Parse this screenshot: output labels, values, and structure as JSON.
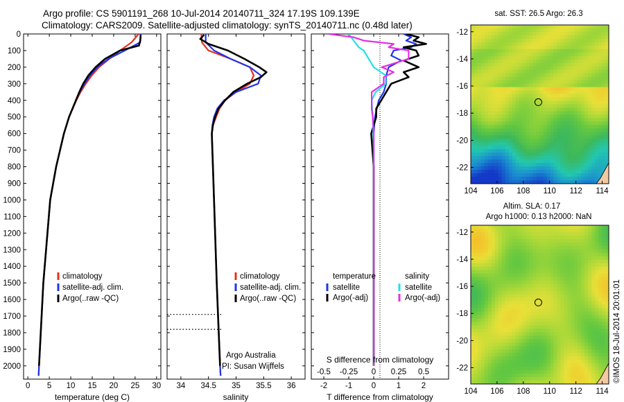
{
  "header": {
    "line1": "Argo profile: CS 5901191_268 10-Jul-2014 20140711_324 17.19S 109.139E",
    "line2": "Climatology: CARS2009. Satellite-adjusted climatology: synTS_20140711.nc (0.48d later)"
  },
  "credits": {
    "org": "Argo Australia",
    "pi": "PI: Susan Wijffels",
    "stamp": "©IMOS 18-Jul-2014 20:01:01"
  },
  "colors": {
    "climatology": "#e8301e",
    "satellite": "#1f35e6",
    "argo": "#000000",
    "cyan": "#22e0e8",
    "magenta": "#e62ee6"
  },
  "chart_data": [
    {
      "type": "line",
      "panel": "temperature",
      "xlabel": "temperature (deg C)",
      "ylabel": "",
      "xlim": [
        -1,
        31
      ],
      "ylim": [
        2080,
        0
      ],
      "xticks": [
        0,
        5,
        10,
        15,
        20,
        25,
        30
      ],
      "yticks": [
        0,
        100,
        200,
        300,
        400,
        500,
        600,
        700,
        800,
        900,
        1000,
        1100,
        1200,
        1300,
        1400,
        1500,
        1600,
        1700,
        1800,
        1900,
        2000
      ],
      "legend": [
        "climatology",
        "satellite-adj. clim.",
        "Argo(..raw -QC)"
      ],
      "legend_position": "lower-center",
      "series": [
        {
          "name": "climatology",
          "color": "#e8301e",
          "depth": [
            0,
            50,
            100,
            150,
            200,
            250,
            300,
            350,
            400,
            500,
            600,
            800,
            1000,
            1500,
            2000,
            2060
          ],
          "values": [
            25.8,
            24.2,
            21.5,
            19.0,
            16.6,
            14.9,
            13.5,
            12.3,
            11.3,
            9.6,
            8.4,
            6.6,
            5.2,
            3.6,
            2.6,
            2.5
          ]
        },
        {
          "name": "satellite-adj. clim.",
          "color": "#1f35e6",
          "depth": [
            0,
            50,
            100,
            150,
            200,
            250,
            300,
            350,
            400,
            500,
            600,
            800,
            1000,
            1500,
            2000,
            2060
          ],
          "values": [
            26.3,
            26.2,
            22.6,
            18.8,
            16.2,
            14.5,
            13.2,
            12.1,
            11.2,
            9.6,
            8.4,
            6.6,
            5.2,
            3.6,
            2.6,
            2.5
          ]
        },
        {
          "name": "Argo(..raw -QC)",
          "color": "#000000",
          "depth": [
            5,
            40,
            70,
            100,
            150,
            200,
            250,
            300,
            350,
            400,
            500,
            600,
            800,
            1000,
            1500,
            2000
          ],
          "values": [
            26.3,
            26.2,
            25.9,
            21.5,
            18.0,
            15.8,
            14.1,
            12.9,
            12.0,
            11.2,
            9.6,
            8.4,
            6.6,
            5.2,
            3.6,
            2.6
          ]
        }
      ]
    },
    {
      "type": "line",
      "panel": "salinity",
      "xlabel": "salinity",
      "xlim": [
        33.75,
        36.25
      ],
      "ylim": [
        2080,
        0
      ],
      "xticks": [
        34,
        34.5,
        35,
        35.5,
        36
      ],
      "legend": [
        "climatology",
        "satellite-adj. clim.",
        "Argo(..raw -QC)"
      ],
      "legend_position": "lower-center",
      "series": [
        {
          "name": "climatology",
          "color": "#e8301e",
          "depth": [
            0,
            50,
            100,
            150,
            200,
            250,
            300,
            350,
            400,
            450,
            500,
            550,
            600,
            800,
            1000,
            1500,
            2000,
            2060
          ],
          "values": [
            34.37,
            34.38,
            34.5,
            34.9,
            35.25,
            35.32,
            35.25,
            35.0,
            34.8,
            34.7,
            34.64,
            34.58,
            34.56,
            34.58,
            34.6,
            34.65,
            34.71,
            34.72
          ]
        },
        {
          "name": "satellite-adj. clim.",
          "color": "#1f35e6",
          "depth": [
            0,
            50,
            100,
            150,
            200,
            250,
            300,
            350,
            400,
            450,
            500,
            550,
            600,
            800,
            1000,
            1500,
            2000,
            2060
          ],
          "values": [
            34.45,
            34.45,
            34.6,
            34.9,
            35.25,
            35.45,
            35.4,
            35.0,
            34.78,
            34.66,
            34.6,
            34.57,
            34.56,
            34.58,
            34.6,
            34.65,
            34.71,
            34.72
          ]
        },
        {
          "name": "Argo(..raw -QC)",
          "color": "#000000",
          "depth": [
            5,
            30,
            60,
            100,
            150,
            200,
            230,
            260,
            300,
            350,
            400,
            450,
            500,
            550,
            600,
            800,
            1000,
            1500,
            2000
          ],
          "values": [
            34.42,
            34.35,
            34.5,
            34.85,
            35.15,
            35.42,
            35.55,
            35.45,
            35.2,
            34.95,
            34.8,
            34.68,
            34.62,
            34.58,
            34.56,
            34.58,
            34.6,
            34.65,
            34.71
          ]
        }
      ],
      "dotted_lines_depth": [
        1690,
        1780
      ]
    },
    {
      "type": "line",
      "panel": "differences",
      "xlabel": "T difference from climatology",
      "x2label": "S difference from climatology",
      "xlim": [
        -2.5,
        3
      ],
      "x2lim": [
        -0.625,
        0.75
      ],
      "ylim": [
        2080,
        0
      ],
      "xticks": [
        -2,
        -1,
        0,
        1,
        2
      ],
      "x2ticks": [
        -0.5,
        -0.25,
        0,
        0.25,
        0.5
      ],
      "x2ticklabels": [
        "-0.5",
        "-0.25",
        "0",
        "0.25",
        "0.5"
      ],
      "legend": {
        "temperature_title": "temperature",
        "salinity_title": "salinity",
        "entries": [
          "satellite",
          "Argo(-adj)",
          "satellite",
          "Argo(-adj)"
        ]
      },
      "series": [
        {
          "name": "satellite",
          "group": "temperature",
          "color": "#1f35e6",
          "depth": [
            0,
            20,
            40,
            60,
            80,
            100,
            130,
            160,
            200,
            250,
            300,
            350,
            400,
            500,
            600,
            800,
            1000,
            2000
          ],
          "values": [
            1.2,
            1.5,
            1.3,
            1.7,
            1.5,
            0.8,
            0.7,
            1.1,
            0.6,
            0.5,
            0.5,
            0.4,
            0.2,
            0.05,
            0.0,
            0.0,
            0.0,
            0.0
          ]
        },
        {
          "name": "Argo(-adj)",
          "group": "temperature",
          "color": "#000000",
          "depth": [
            0,
            20,
            40,
            60,
            80,
            100,
            130,
            160,
            200,
            230,
            260,
            300,
            350,
            400,
            450,
            500,
            600,
            700,
            800,
            1000,
            2000
          ],
          "values": [
            1.3,
            1.8,
            1.6,
            2.1,
            1.2,
            1.7,
            1.8,
            1.2,
            1.8,
            1.2,
            1.4,
            0.7,
            0.5,
            0.3,
            0.1,
            0.1,
            -0.1,
            -0.05,
            0.0,
            0.0,
            0.0
          ]
        },
        {
          "name": "satellite",
          "group": "salinity",
          "color": "#22e0e8",
          "depth": [
            0,
            40,
            80,
            100,
            150,
            200,
            250,
            300,
            350,
            400,
            500,
            700,
            1000,
            2000
          ],
          "values": [
            -0.25,
            -0.2,
            -0.15,
            -0.1,
            -0.05,
            0.0,
            0.12,
            0.12,
            0.02,
            -0.02,
            -0.01,
            0.0,
            0.0,
            0.0
          ]
        },
        {
          "name": "Argo(-adj)",
          "group": "salinity",
          "color": "#e62ee6",
          "depth": [
            0,
            20,
            40,
            60,
            80,
            100,
            150,
            200,
            230,
            260,
            300,
            350,
            400,
            450,
            500,
            600,
            800,
            1000,
            2000
          ],
          "values": [
            -0.45,
            -0.2,
            -0.1,
            0.2,
            0.15,
            0.35,
            0.35,
            0.08,
            0.2,
            0.1,
            0.1,
            -0.02,
            -0.02,
            -0.02,
            -0.01,
            0.0,
            0.0,
            0.0,
            0.0
          ]
        }
      ]
    },
    {
      "type": "heatmap",
      "panel": "sst_map",
      "title": "sat. SST: 26.5  Argo: 26.3",
      "xlim": [
        104,
        114.5
      ],
      "ylim": [
        -23.2,
        -11.5
      ],
      "xticks": [
        104,
        106,
        108,
        110,
        112,
        114
      ],
      "yticks": [
        -12,
        -14,
        -16,
        -18,
        -20,
        -22
      ],
      "marker": {
        "lon": 109.139,
        "lat": -17.19
      },
      "colors": [
        "#1438c8",
        "#1a8cd0",
        "#22c8b0",
        "#3cb85c",
        "#64c840",
        "#a8d838",
        "#e8e038",
        "#f4c02a"
      ]
    },
    {
      "type": "heatmap",
      "panel": "sla_map",
      "title_lines": [
        "Altim. SLA: 0.17",
        "Argo h1000: 0.13  h2000: NaN"
      ],
      "xlim": [
        104,
        114.5
      ],
      "ylim": [
        -23.2,
        -11.5
      ],
      "xticks": [
        104,
        106,
        108,
        110,
        112,
        114
      ],
      "yticks": [
        -12,
        -14,
        -16,
        -18,
        -20,
        -22
      ],
      "marker": {
        "lon": 109.139,
        "lat": -17.19
      },
      "colors": [
        "#3cb85c",
        "#64c840",
        "#a8d838",
        "#e8e038",
        "#f4c02a"
      ]
    }
  ]
}
